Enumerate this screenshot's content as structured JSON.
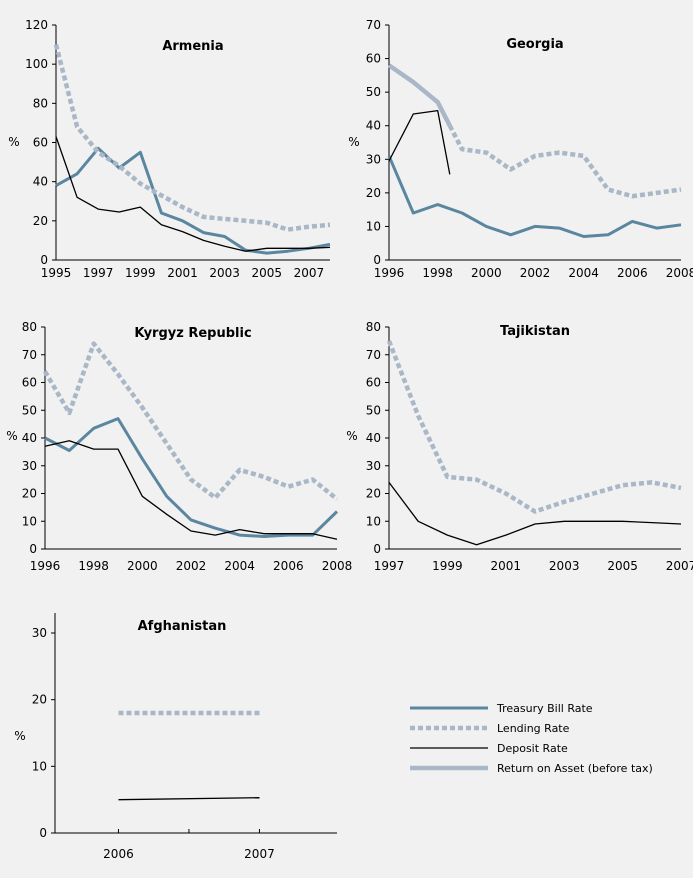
{
  "legend": [
    {
      "key": "tbill",
      "label": "Treasury Bill Rate"
    },
    {
      "key": "lending",
      "label": "Lending Rate"
    },
    {
      "key": "deposit",
      "label": "Deposit Rate"
    },
    {
      "key": "roa",
      "label": "Return on Asset (before tax)"
    }
  ],
  "series_styles": {
    "tbill": {
      "color": "#5b86a0"
    },
    "lending": {
      "color": "#a9b7c7"
    },
    "deposit": {
      "color": "#000000"
    },
    "roa": {
      "color": "#a9b7c7"
    }
  },
  "chart_data": [
    {
      "id": "armenia",
      "type": "line",
      "title": "Armenia",
      "ylabel": "%",
      "xlim": [
        1995,
        2008
      ],
      "ylim": [
        0,
        120
      ],
      "yticks": [
        0,
        20,
        40,
        60,
        80,
        100,
        120
      ],
      "xticks": [
        1995,
        1997,
        1999,
        2001,
        2003,
        2005,
        2007
      ],
      "series": [
        {
          "key": "tbill",
          "name": "Treasury Bill Rate",
          "x": [
            1995,
            1996,
            1997,
            1998,
            1999,
            2000,
            2001,
            2002,
            2003,
            2004,
            2005,
            2006,
            2007,
            2008
          ],
          "values": [
            38,
            44,
            57,
            47,
            55,
            24,
            20,
            14,
            12,
            5,
            3.5,
            4.5,
            6,
            8
          ]
        },
        {
          "key": "lending",
          "name": "Lending Rate",
          "x": [
            1995,
            1996,
            1997,
            1998,
            1999,
            2000,
            2001,
            2002,
            2003,
            2004,
            2005,
            2006,
            2007,
            2008
          ],
          "values": [
            110,
            68,
            55,
            48,
            39,
            33,
            27,
            22,
            21,
            20,
            19,
            15.5,
            17,
            18
          ]
        },
        {
          "key": "deposit",
          "name": "Deposit Rate",
          "x": [
            1995,
            1996,
            1997,
            1998,
            1999,
            2000,
            2001,
            2002,
            2003,
            2004,
            2005,
            2006,
            2007,
            2008
          ],
          "values": [
            63,
            32,
            26,
            24.5,
            27,
            18,
            14.5,
            10,
            7,
            4.5,
            6,
            6,
            6,
            6.5
          ]
        }
      ]
    },
    {
      "id": "georgia",
      "type": "line",
      "title": "Georgia",
      "ylabel": "%",
      "xlim": [
        1996,
        2008
      ],
      "ylim": [
        0,
        70
      ],
      "yticks": [
        0,
        10,
        20,
        30,
        40,
        50,
        60,
        70
      ],
      "xticks": [
        1996,
        1998,
        2000,
        2002,
        2004,
        2006,
        2008
      ],
      "series": [
        {
          "key": "roa",
          "name": "Return on Asset (before tax)",
          "x": [
            1996,
            1997,
            1998,
            1998.5
          ],
          "values": [
            58,
            53,
            47,
            40
          ]
        },
        {
          "key": "lending",
          "name": "Lending Rate",
          "x": [
            1998.5,
            1999,
            2000,
            2001,
            2002,
            2003,
            2004,
            2005,
            2006,
            2007,
            2008
          ],
          "values": [
            40,
            33,
            32,
            27,
            31,
            32,
            31,
            21,
            19,
            20,
            21
          ]
        },
        {
          "key": "tbill",
          "name": "Treasury Bill Rate",
          "x": [
            1996,
            1997,
            1998,
            1999,
            2000,
            2001,
            2002,
            2003,
            2004,
            2005,
            2006,
            2007,
            2008
          ],
          "values": [
            31,
            14,
            16.5,
            14,
            10,
            7.5,
            10,
            9.5,
            7,
            7.5,
            11.5,
            9.5,
            10.5
          ]
        },
        {
          "key": "deposit",
          "name": "Deposit Rate",
          "x": [
            1996,
            1997,
            1998,
            1998.5
          ],
          "values": [
            29.5,
            43.5,
            44.5,
            25.5
          ]
        }
      ]
    },
    {
      "id": "kyrgyz",
      "type": "line",
      "title": "Kyrgyz Republic",
      "ylabel": "%",
      "xlim": [
        1996,
        2008
      ],
      "ylim": [
        0,
        80
      ],
      "yticks": [
        0,
        10,
        20,
        30,
        40,
        50,
        60,
        70,
        80
      ],
      "xticks": [
        1996,
        1998,
        2000,
        2002,
        2004,
        2006,
        2008
      ],
      "series": [
        {
          "key": "lending",
          "name": "Lending Rate",
          "x": [
            1996,
            1997,
            1998,
            1999,
            2000,
            2001,
            2002,
            2003,
            2004,
            2005,
            2006,
            2007,
            2008
          ],
          "values": [
            64,
            49,
            74,
            63,
            51,
            38,
            25,
            18.5,
            28.5,
            26,
            22.5,
            25,
            18
          ]
        },
        {
          "key": "tbill",
          "name": "Treasury Bill Rate",
          "x": [
            1996,
            1997,
            1998,
            1999,
            2000,
            2001,
            2002,
            2003,
            2004,
            2005,
            2006,
            2007,
            2008
          ],
          "values": [
            40,
            35.5,
            43.5,
            47,
            32.5,
            19,
            10.5,
            7.5,
            5,
            4.5,
            5,
            5,
            13.5
          ]
        },
        {
          "key": "deposit",
          "name": "Deposit Rate",
          "x": [
            1996,
            1997,
            1998,
            1999,
            2000,
            2001,
            2002,
            2003,
            2004,
            2005,
            2006,
            2007,
            2008
          ],
          "values": [
            37,
            39,
            36,
            36,
            19,
            12.5,
            6.5,
            5,
            7,
            5.5,
            5.5,
            5.5,
            3.5
          ]
        }
      ]
    },
    {
      "id": "tajikistan",
      "type": "line",
      "title": "Tajikistan",
      "ylabel": "%",
      "xlim": [
        1997,
        2007
      ],
      "ylim": [
        0,
        80
      ],
      "yticks": [
        0,
        10,
        20,
        30,
        40,
        50,
        60,
        70,
        80
      ],
      "xticks": [
        1997,
        1999,
        2001,
        2003,
        2005,
        2007
      ],
      "series": [
        {
          "key": "lending",
          "name": "Lending Rate",
          "x": [
            1997,
            1998,
            1999,
            2000,
            2001,
            2002,
            2003,
            2004,
            2005,
            2006,
            2007
          ],
          "values": [
            75,
            48,
            26,
            25,
            20,
            13.5,
            17,
            20,
            23,
            24,
            22
          ]
        },
        {
          "key": "deposit",
          "name": "Deposit Rate",
          "x": [
            1997,
            1998,
            1999,
            2000,
            2001,
            2002,
            2003,
            2004,
            2005,
            2006,
            2007
          ],
          "values": [
            24,
            10,
            5,
            1.5,
            5,
            9,
            10,
            10,
            10,
            9.5,
            9
          ]
        }
      ]
    },
    {
      "id": "afghanistan",
      "type": "line",
      "title": "Afghanistan",
      "ylabel": "%",
      "xlim": [
        2005.55,
        2007.55
      ],
      "ylim": [
        0,
        33
      ],
      "yticks": [
        0,
        10,
        20,
        30
      ],
      "xticks": [
        2006,
        2007
      ],
      "series": [
        {
          "key": "lending",
          "name": "Lending Rate",
          "x": [
            2006,
            2007
          ],
          "values": [
            18,
            18
          ]
        },
        {
          "key": "deposit",
          "name": "Deposit Rate",
          "x": [
            2006,
            2007
          ],
          "values": [
            5,
            5.3
          ]
        }
      ]
    }
  ]
}
